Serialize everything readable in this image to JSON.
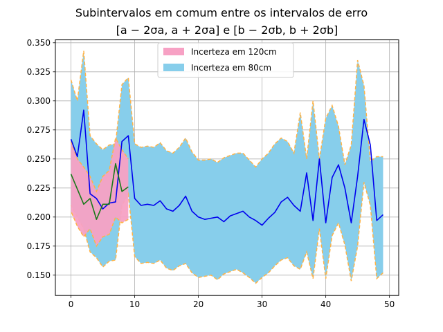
{
  "chart_data": {
    "type": "area",
    "title": "Subintervalos em comum entre os intervalos de erro",
    "subtitle": "[a − 2σa, a + 2σa] e [b − 2σb, b + 2σb]",
    "xlabel": "",
    "ylabel": "",
    "xlim": [
      -2.45,
      51.45
    ],
    "ylim": [
      0.1325,
      0.3525
    ],
    "xticks": [
      0,
      10,
      20,
      30,
      40,
      50
    ],
    "yticks": [
      0.15,
      0.175,
      0.2,
      0.225,
      0.25,
      0.275,
      0.3,
      0.325,
      0.35
    ],
    "ytick_labels": [
      "0.150",
      "0.175",
      "0.200",
      "0.225",
      "0.250",
      "0.275",
      "0.300",
      "0.325",
      "0.350"
    ],
    "grid": true,
    "legend_position": "upper-center",
    "band_edge_color": "#ffb347",
    "series": [
      {
        "name": "Incerteza em 120cm",
        "kind": "band",
        "color": "#f7a1c4",
        "x": [
          0,
          1,
          2,
          3,
          4,
          5,
          6,
          7,
          8,
          9
        ],
        "lower": [
          0.205,
          0.192,
          0.183,
          0.19,
          0.175,
          0.183,
          0.185,
          0.2,
          0.195,
          0.198
        ],
        "upper": [
          0.265,
          0.25,
          0.243,
          0.235,
          0.222,
          0.235,
          0.24,
          0.268,
          0.258,
          0.25
        ]
      },
      {
        "name": "Incerteza em 80cm",
        "kind": "band",
        "color": "#87ceeb",
        "x": [
          0,
          1,
          2,
          3,
          4,
          5,
          6,
          7,
          8,
          9,
          10,
          11,
          12,
          13,
          14,
          15,
          16,
          17,
          18,
          19,
          20,
          21,
          22,
          23,
          24,
          25,
          26,
          27,
          28,
          29,
          30,
          31,
          32,
          33,
          34,
          35,
          36,
          37,
          38,
          39,
          40,
          41,
          42,
          43,
          44,
          45,
          46,
          47,
          48,
          49
        ],
        "lower": [
          0.21,
          0.2,
          0.19,
          0.17,
          0.165,
          0.157,
          0.162,
          0.163,
          0.21,
          0.22,
          0.166,
          0.16,
          0.161,
          0.16,
          0.163,
          0.156,
          0.154,
          0.158,
          0.16,
          0.152,
          0.148,
          0.149,
          0.15,
          0.146,
          0.151,
          0.153,
          0.155,
          0.152,
          0.148,
          0.143,
          0.148,
          0.152,
          0.158,
          0.163,
          0.165,
          0.158,
          0.155,
          0.17,
          0.147,
          0.19,
          0.147,
          0.184,
          0.195,
          0.176,
          0.145,
          0.175,
          0.23,
          0.21,
          0.147,
          0.152
        ],
        "upper": [
          0.318,
          0.3,
          0.343,
          0.27,
          0.263,
          0.258,
          0.262,
          0.263,
          0.314,
          0.32,
          0.263,
          0.26,
          0.261,
          0.26,
          0.264,
          0.257,
          0.255,
          0.26,
          0.268,
          0.256,
          0.249,
          0.249,
          0.25,
          0.247,
          0.251,
          0.253,
          0.255,
          0.255,
          0.249,
          0.243,
          0.25,
          0.255,
          0.263,
          0.268,
          0.265,
          0.255,
          0.29,
          0.25,
          0.3,
          0.25,
          0.285,
          0.296,
          0.278,
          0.245,
          0.262,
          0.335,
          0.313,
          0.248,
          0.252,
          0.252
        ]
      },
      {
        "name": "",
        "kind": "line",
        "color": "#0000ee",
        "x": [
          0,
          1,
          2,
          3,
          4,
          5,
          6,
          7,
          8,
          9,
          10,
          11,
          12,
          13,
          14,
          15,
          16,
          17,
          18,
          19,
          20,
          21,
          22,
          23,
          24,
          25,
          26,
          27,
          28,
          29,
          30,
          31,
          32,
          33,
          34,
          35,
          36,
          37,
          38,
          39,
          40,
          41,
          42,
          43,
          44,
          45,
          46,
          47,
          48,
          49
        ],
        "values": [
          0.267,
          0.252,
          0.292,
          0.22,
          0.216,
          0.207,
          0.212,
          0.213,
          0.265,
          0.27,
          0.216,
          0.21,
          0.211,
          0.21,
          0.214,
          0.207,
          0.205,
          0.21,
          0.218,
          0.205,
          0.2,
          0.198,
          0.199,
          0.2,
          0.196,
          0.201,
          0.203,
          0.205,
          0.2,
          0.197,
          0.193,
          0.199,
          0.204,
          0.213,
          0.217,
          0.21,
          0.205,
          0.238,
          0.197,
          0.25,
          0.195,
          0.234,
          0.245,
          0.225,
          0.195,
          0.235,
          0.284,
          0.262,
          0.197,
          0.202
        ]
      },
      {
        "name": "",
        "kind": "line",
        "color": "#1a7a1a",
        "x": [
          0,
          1,
          2,
          3,
          4,
          5,
          6,
          7,
          8,
          9
        ],
        "values": [
          0.237,
          0.224,
          0.211,
          0.216,
          0.198,
          0.211,
          0.211,
          0.246,
          0.222,
          0.226
        ]
      }
    ]
  }
}
